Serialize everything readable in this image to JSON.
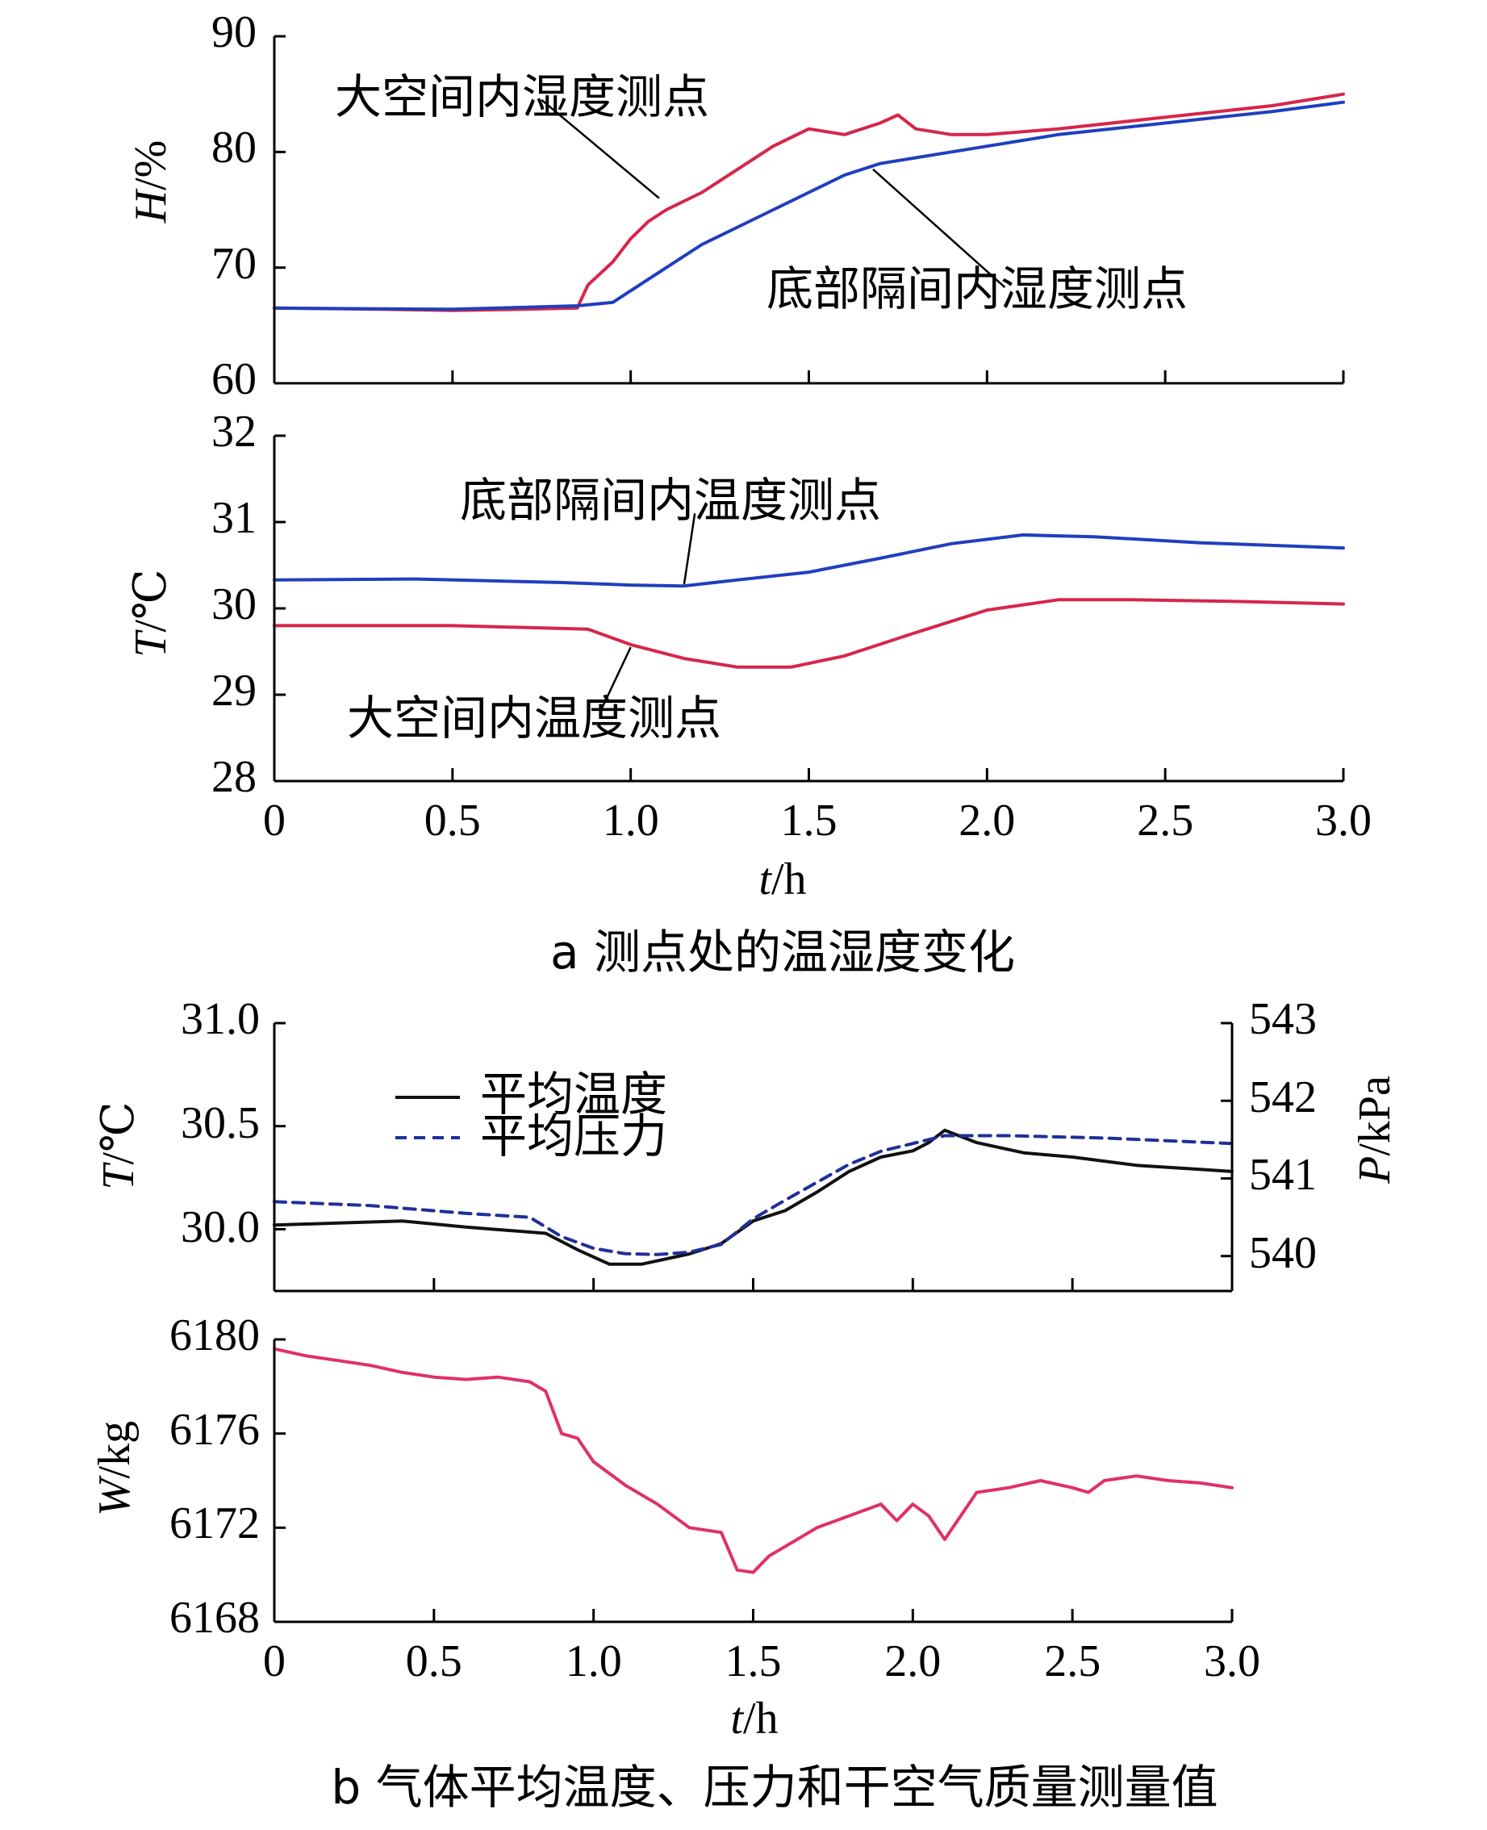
{
  "colors": {
    "red": "#d6264a",
    "blue": "#1f3fbf",
    "black": "#111111",
    "navy": "#1f2f9a",
    "pink": "#e0306a",
    "axis": "#000000"
  },
  "xaxis": {
    "label_italic": "t",
    "label_rest": "/h",
    "ticks": [
      "0",
      "0.5",
      "1.0",
      "1.5",
      "2.0",
      "2.5",
      "3.0"
    ]
  },
  "caption_a": "a  测点处的温湿度变化",
  "caption_b": "b  气体平均温度、压力和干空气质量测量值",
  "chart_data": [
    {
      "id": "humidity",
      "type": "line",
      "ylabel_italic": "H",
      "ylabel_rest": "/%",
      "ylim": [
        60,
        90
      ],
      "yticks": [
        "60",
        "70",
        "80",
        "90"
      ],
      "xlim": [
        0,
        3
      ],
      "series": [
        {
          "name": "大空间内湿度测点",
          "color": "red",
          "x": [
            0,
            0.3,
            0.5,
            0.7,
            0.85,
            0.88,
            0.95,
            1.0,
            1.05,
            1.1,
            1.2,
            1.3,
            1.4,
            1.5,
            1.6,
            1.7,
            1.75,
            1.8,
            1.9,
            2.0,
            2.2,
            2.5,
            2.8,
            3.0
          ],
          "y": [
            66.5,
            66.4,
            66.3,
            66.4,
            66.5,
            68.5,
            70.5,
            72.5,
            74.0,
            75.0,
            76.5,
            78.5,
            80.5,
            82.0,
            81.5,
            82.5,
            83.2,
            82.0,
            81.5,
            81.5,
            82.0,
            83.0,
            84.0,
            85.0
          ]
        },
        {
          "name": "底部隔间内湿度测点",
          "color": "blue",
          "x": [
            0,
            0.5,
            0.85,
            0.95,
            1.0,
            1.1,
            1.2,
            1.3,
            1.4,
            1.5,
            1.6,
            1.7,
            1.8,
            1.9,
            2.0,
            2.2,
            2.5,
            2.8,
            3.0
          ],
          "y": [
            66.5,
            66.4,
            66.7,
            67.0,
            68.0,
            70.0,
            72.0,
            73.5,
            75.0,
            76.5,
            78.0,
            79.0,
            79.5,
            80.0,
            80.5,
            81.5,
            82.5,
            83.5,
            84.3
          ]
        }
      ],
      "annotations": [
        {
          "text": "大空间内湿度测点",
          "x": 0.75,
          "y": 84.5,
          "tx": 1.08,
          "ty": 76
        },
        {
          "text": "底部隔间内湿度测点",
          "x": 2.05,
          "y": 68.3,
          "tx": 1.68,
          "ty": 78.5
        }
      ]
    },
    {
      "id": "temperature",
      "type": "line",
      "ylabel_italic": "T",
      "ylabel_rest": "/℃",
      "ylim": [
        28,
        32
      ],
      "yticks": [
        "28",
        "29",
        "30",
        "31",
        "32"
      ],
      "xlim": [
        0,
        3
      ],
      "series": [
        {
          "name": "底部隔间内温度测点",
          "color": "blue",
          "x": [
            0,
            0.4,
            0.8,
            1.0,
            1.15,
            1.3,
            1.5,
            1.7,
            1.9,
            2.1,
            2.3,
            2.6,
            3.0
          ],
          "y": [
            30.33,
            30.34,
            30.3,
            30.27,
            30.26,
            30.33,
            30.42,
            30.58,
            30.75,
            30.85,
            30.83,
            30.76,
            30.7
          ]
        },
        {
          "name": "大空间内温度测点",
          "color": "red",
          "x": [
            0,
            0.5,
            0.88,
            1.0,
            1.15,
            1.3,
            1.45,
            1.6,
            1.8,
            2.0,
            2.2,
            2.4,
            2.7,
            3.0
          ],
          "y": [
            29.8,
            29.8,
            29.76,
            29.58,
            29.42,
            29.32,
            29.32,
            29.45,
            29.72,
            29.98,
            30.1,
            30.1,
            30.08,
            30.05
          ]
        }
      ],
      "annotations": [
        {
          "text": "底部隔间内温度测点",
          "x": 1.18,
          "y": 31.1,
          "tx": 1.15,
          "ty": 30.28
        },
        {
          "text": "大空间内温度测点",
          "x": 0.92,
          "y": 28.85,
          "tx": 1.0,
          "ty": 29.55
        }
      ]
    },
    {
      "id": "avg_temp_pressure",
      "type": "line",
      "ylabel_italic": "T",
      "ylabel_rest": "/℃",
      "ylim": [
        29.7,
        31.0
      ],
      "yticks": [
        "30.0",
        "30.5",
        "31.0"
      ],
      "y2label_italic": "P",
      "y2label_rest": "/kPa",
      "y2lim": [
        539.55,
        543.0
      ],
      "y2ticks": [
        "540",
        "541",
        "542",
        "543"
      ],
      "xlim": [
        0,
        3
      ],
      "legend": [
        {
          "label": "平均温度",
          "style": "solid",
          "color": "black"
        },
        {
          "label": "平均压力",
          "style": "dashed",
          "color": "navy"
        }
      ],
      "series": [
        {
          "name": "平均温度",
          "axis": "left",
          "style": "solid",
          "color": "black",
          "x": [
            0,
            0.2,
            0.4,
            0.6,
            0.85,
            0.95,
            1.05,
            1.15,
            1.3,
            1.4,
            1.5,
            1.6,
            1.7,
            1.8,
            1.9,
            2.0,
            2.05,
            2.1,
            2.2,
            2.35,
            2.5,
            2.7,
            2.9,
            3.0
          ],
          "y": [
            30.02,
            30.03,
            30.04,
            30.01,
            29.98,
            29.9,
            29.83,
            29.83,
            29.88,
            29.93,
            30.04,
            30.09,
            30.18,
            30.28,
            30.35,
            30.38,
            30.42,
            30.48,
            30.42,
            30.37,
            30.35,
            30.31,
            30.29,
            30.28
          ]
        },
        {
          "name": "平均压力",
          "axis": "right",
          "style": "dashed",
          "color": "navy",
          "x": [
            0,
            0.3,
            0.6,
            0.8,
            0.9,
            1.0,
            1.1,
            1.2,
            1.3,
            1.4,
            1.5,
            1.6,
            1.7,
            1.8,
            1.9,
            2.0,
            2.1,
            2.3,
            2.6,
            3.0
          ],
          "y": [
            540.7,
            540.65,
            540.55,
            540.5,
            540.25,
            540.1,
            540.03,
            540.02,
            540.05,
            540.15,
            540.48,
            540.72,
            540.95,
            541.18,
            541.35,
            541.45,
            541.55,
            541.55,
            541.52,
            541.45
          ]
        }
      ]
    },
    {
      "id": "dry_air_mass",
      "type": "line",
      "ylabel_italic": "W",
      "ylabel_rest": "/kg",
      "ylim": [
        6168,
        6180
      ],
      "yticks": [
        "6168",
        "6172",
        "6176",
        "6180"
      ],
      "xlim": [
        0,
        3
      ],
      "series": [
        {
          "name": "干空气质量",
          "color": "pink",
          "x": [
            0,
            0.1,
            0.2,
            0.3,
            0.4,
            0.5,
            0.6,
            0.7,
            0.8,
            0.85,
            0.9,
            0.95,
            1.0,
            1.05,
            1.1,
            1.2,
            1.3,
            1.4,
            1.45,
            1.5,
            1.55,
            1.6,
            1.7,
            1.8,
            1.9,
            1.95,
            2.0,
            2.05,
            2.1,
            2.15,
            2.2,
            2.3,
            2.4,
            2.5,
            2.55,
            2.6,
            2.7,
            2.8,
            2.9,
            3.0
          ],
          "y": [
            6179.6,
            6179.3,
            6179.1,
            6178.9,
            6178.6,
            6178.4,
            6178.3,
            6178.4,
            6178.2,
            6177.8,
            6176.0,
            6175.8,
            6174.8,
            6174.3,
            6173.8,
            6173.0,
            6172.0,
            6171.8,
            6170.2,
            6170.1,
            6170.8,
            6171.2,
            6172.0,
            6172.5,
            6173.0,
            6172.3,
            6173.0,
            6172.5,
            6171.5,
            6172.5,
            6173.5,
            6173.7,
            6174.0,
            6173.7,
            6173.5,
            6174.0,
            6174.2,
            6174.0,
            6173.9,
            6173.7
          ]
        }
      ]
    }
  ]
}
